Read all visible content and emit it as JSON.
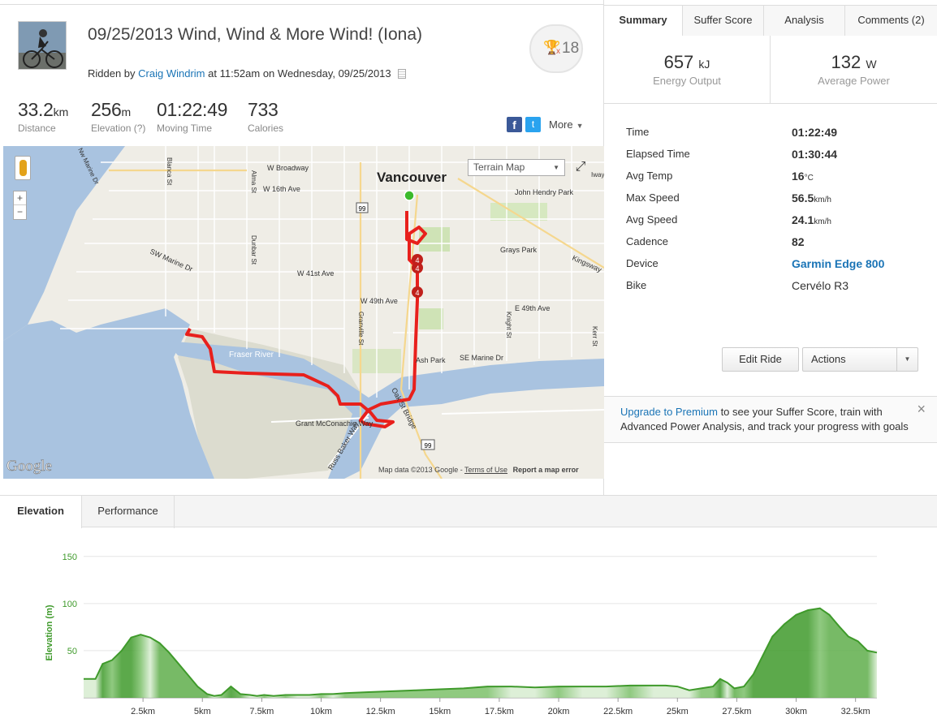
{
  "activity": {
    "title": "09/25/2013 Wind, Wind & More Wind! (Iona)",
    "ridden_prefix": "Ridden by",
    "athlete": "Craig Windrim",
    "ridden_suffix": "at 11:52am on Wednesday, 09/25/2013",
    "achievements_prefix": "x",
    "achievements_count": "18"
  },
  "stats": [
    {
      "value": "33.2",
      "unit": "km",
      "label": "Distance"
    },
    {
      "value": "256",
      "unit": "m",
      "label": "Elevation (?)"
    },
    {
      "value": "01:22:49",
      "unit": "",
      "label": "Moving Time"
    },
    {
      "value": "733",
      "unit": "",
      "label": "Calories"
    }
  ],
  "share": {
    "facebook": "f",
    "twitter": "t",
    "more_label": "More"
  },
  "map": {
    "type_label": "Terrain Map",
    "city": "Vancouver",
    "attribution": "Map data ©2013 Google",
    "terms": "Terms of Use",
    "report": "Report a map error",
    "logo": "Google",
    "labels": [
      "W Broadway",
      "W 16th Ave",
      "SW Marine Dr",
      "W 41st Ave",
      "W 49th Ave",
      "E 49th Ave",
      "Kingsway",
      "Grays Park",
      "John Hendry Park",
      "Fraser River",
      "Ash Park",
      "SE Marine Dr",
      "Grant McConachie Way",
      "Russ Baker Way",
      "Oak St Bridge",
      "Alma St",
      "Blanca St",
      "Dunbar St",
      "Granville St",
      "Knight St",
      "Kerr St",
      "Nw Marine Dr",
      "Iway"
    ],
    "shields": [
      "99",
      "99"
    ],
    "lap_markers": [
      "4",
      "4",
      "4"
    ],
    "zoom_in": "+",
    "zoom_out": "−"
  },
  "tabs": [
    "Summary",
    "Suffer Score",
    "Analysis",
    "Comments (2)"
  ],
  "summary": [
    {
      "value": "657",
      "unit": "kJ",
      "label": "Energy Output"
    },
    {
      "value": "132",
      "unit": "W",
      "label": "Average Power"
    }
  ],
  "details": [
    {
      "label": "Time",
      "value": "01:22:49",
      "unit": ""
    },
    {
      "label": "Elapsed Time",
      "value": "01:30:44",
      "unit": ""
    },
    {
      "label": "Avg Temp",
      "value": "16",
      "unit": "°C"
    },
    {
      "label": "Max Speed",
      "value": "56.5",
      "unit": "km/h"
    },
    {
      "label": "Avg Speed",
      "value": "24.1",
      "unit": "km/h"
    },
    {
      "label": "Cadence",
      "value": "82",
      "unit": ""
    },
    {
      "label": "Device",
      "value": "Garmin Edge 800",
      "unit": ""
    },
    {
      "label": "Bike",
      "value": "Cervélo R3",
      "unit": ""
    }
  ],
  "buttons": {
    "edit_ride": "Edit Ride",
    "actions": "Actions"
  },
  "promo": {
    "link": "Upgrade to Premium",
    "text": " to see your Suffer Score, train with Advanced Power Analysis, and track your progress with goals",
    "close": "×"
  },
  "bottom_tabs": [
    "Elevation",
    "Performance"
  ],
  "colors": {
    "accent_link": "#1a74b6",
    "route": "#e8201c",
    "elevation": "#3f9a2b",
    "water": "#a9c3e0"
  },
  "chart_data": {
    "type": "area",
    "ylabel": "Elevation (m)",
    "xlabel": "",
    "yticks": [
      50,
      100,
      150
    ],
    "ylim": [
      0,
      155
    ],
    "xlim": [
      0,
      33.4
    ],
    "xticks": [
      "2.5km",
      "5km",
      "7.5km",
      "10km",
      "12.5km",
      "15km",
      "17.5km",
      "20km",
      "22.5km",
      "25km",
      "27.5km",
      "30km",
      "32.5km"
    ],
    "xtick_values": [
      2.5,
      5,
      7.5,
      10,
      12.5,
      15,
      17.5,
      20,
      22.5,
      25,
      27.5,
      30,
      32.5
    ],
    "grid": true,
    "x": [
      0,
      0.5,
      0.8,
      1.2,
      1.6,
      2.0,
      2.4,
      2.8,
      3.2,
      3.6,
      4.0,
      4.4,
      4.8,
      5.2,
      5.5,
      5.8,
      6.2,
      6.6,
      7.0,
      7.3,
      7.6,
      8.0,
      8.5,
      9.0,
      9.5,
      10.0,
      10.5,
      11.0,
      12.0,
      13.0,
      14.0,
      15.0,
      16.0,
      17.0,
      18.0,
      19.0,
      20.0,
      21.0,
      22.0,
      23.0,
      24.0,
      24.5,
      25.0,
      25.5,
      26.0,
      26.5,
      26.8,
      27.1,
      27.4,
      27.8,
      28.2,
      28.6,
      29.0,
      29.5,
      30.0,
      30.5,
      31.0,
      31.4,
      31.8,
      32.2,
      32.6,
      33.0,
      33.4
    ],
    "y": [
      20,
      20,
      36,
      40,
      50,
      64,
      67,
      64,
      58,
      48,
      36,
      24,
      12,
      4,
      2,
      3,
      12,
      4,
      3,
      2,
      3,
      2,
      3,
      3,
      3,
      4,
      4,
      5,
      6,
      7,
      8,
      9,
      10,
      12,
      12,
      11,
      12,
      12,
      12,
      13,
      13,
      13,
      12,
      8,
      10,
      12,
      20,
      16,
      10,
      12,
      25,
      45,
      65,
      78,
      88,
      93,
      95,
      88,
      76,
      65,
      60,
      50,
      48
    ]
  }
}
